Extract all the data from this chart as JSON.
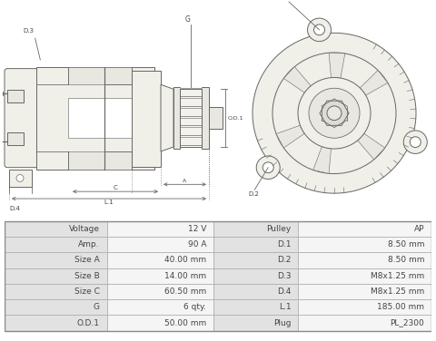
{
  "table_data": [
    [
      "Voltage",
      "12 V",
      "Pulley",
      "AP"
    ],
    [
      "Amp.",
      "90 A",
      "D.1",
      "8.50 mm"
    ],
    [
      "Size A",
      "40.00 mm",
      "D.2",
      "8.50 mm"
    ],
    [
      "Size B",
      "14.00 mm",
      "D.3",
      "M8x1.25 mm"
    ],
    [
      "Size C",
      "60.50 mm",
      "D.4",
      "M8x1.25 mm"
    ],
    [
      "G",
      "6 qty.",
      "L.1",
      "185.00 mm"
    ],
    [
      "O.D.1",
      "50.00 mm",
      "Plug",
      "PL_2300"
    ]
  ],
  "white_bg": "#ffffff",
  "cell_label_bg": "#e2e2e2",
  "cell_value_bg": "#f5f5f5",
  "border_color": "#aaaaaa",
  "text_color": "#444444",
  "line_color": "#666666",
  "fill_light": "#f0efe8",
  "fill_medium": "#e8e7e0",
  "fill_dark": "#dddcd5"
}
